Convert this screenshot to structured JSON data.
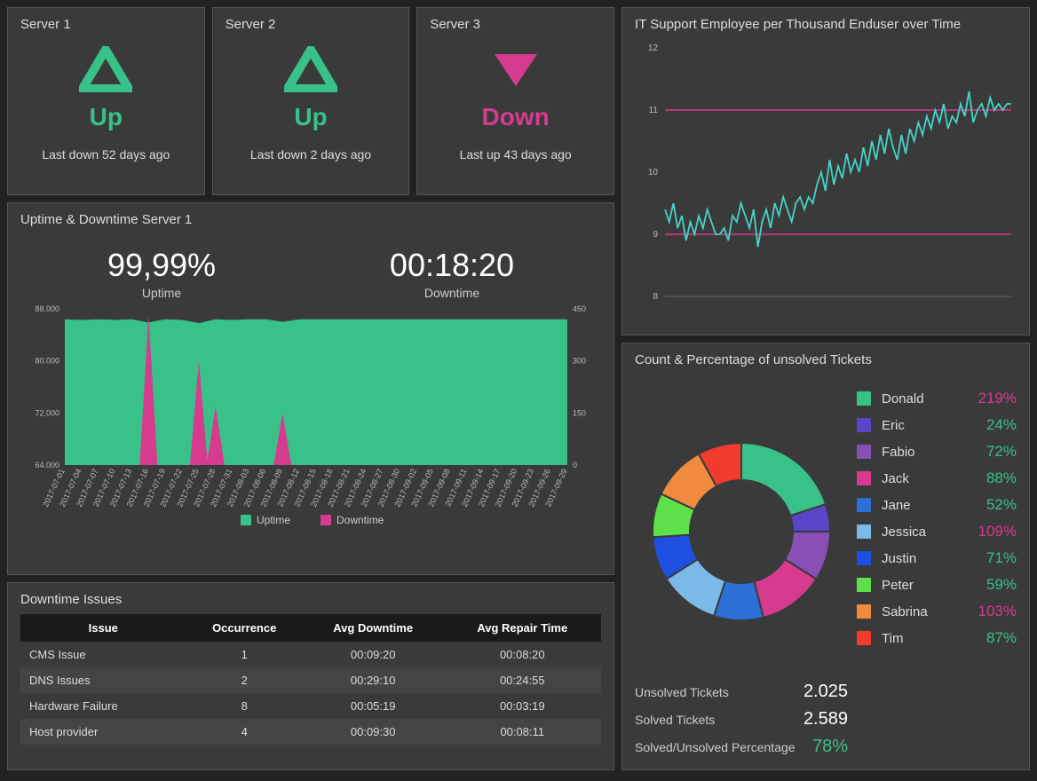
{
  "colors": {
    "bg": "#222222",
    "panel": "#3a3a3a",
    "border": "#555555",
    "green": "#38c28a",
    "magenta": "#d63b8e",
    "teal": "#47d4c6",
    "text": "#dddddd"
  },
  "servers": [
    {
      "name": "Server 1",
      "status": "Up",
      "statusColor": "#38c28a",
      "icon": "triangle-up",
      "meta": "Last down 52 days ago"
    },
    {
      "name": "Server 2",
      "status": "Up",
      "statusColor": "#38c28a",
      "icon": "triangle-up",
      "meta": "Last down 2 days ago"
    },
    {
      "name": "Server 3",
      "status": "Down",
      "statusColor": "#d63b8e",
      "icon": "triangle-down",
      "meta": "Last up 43 days ago"
    }
  ],
  "uptime": {
    "title": "Uptime & Downtime Server 1",
    "uptime_pct": "99,99%",
    "uptime_label": "Uptime",
    "downtime_val": "00:18:20",
    "downtime_label": "Downtime",
    "chart": {
      "type": "area+bar",
      "left_axis_label_vals": [
        "88.000",
        "80.000",
        "72.000",
        "64.000"
      ],
      "left_ylim": [
        64000,
        88000
      ],
      "right_axis_label_vals": [
        "450",
        "300",
        "150",
        "0"
      ],
      "right_ylim": [
        0,
        450
      ],
      "x_labels": [
        "2017-07-01",
        "2017-07-04",
        "2017-07-07",
        "2017-07-10",
        "2017-07-13",
        "2017-07-16",
        "2017-07-19",
        "2017-07-22",
        "2017-07-25",
        "2017-07-28",
        "2017-07-31",
        "2017-08-03",
        "2017-08-06",
        "2017-08-09",
        "2017-08-12",
        "2017-08-15",
        "2017-08-18",
        "2017-08-21",
        "2017-08-24",
        "2017-08-27",
        "2017-08-30",
        "2017-09-02",
        "2017-09-05",
        "2017-09-08",
        "2017-09-11",
        "2017-09-14",
        "2017-09-17",
        "2017-09-20",
        "2017-09-23",
        "2017-09-26",
        "2017-09-29"
      ],
      "uptime_series": [
        86400,
        86300,
        86400,
        86300,
        86400,
        85900,
        86400,
        86300,
        85800,
        86400,
        86300,
        86400,
        86400,
        86000,
        86400,
        86400,
        86400,
        86400,
        86400,
        86400,
        86400,
        86400,
        86400,
        86400,
        86400,
        86400,
        86400,
        86400,
        86400,
        86400,
        86400
      ],
      "uptime_color": "#38c28a",
      "downtime_spikes": [
        {
          "x_index": 5,
          "value": 430
        },
        {
          "x_index": 8,
          "value": 300
        },
        {
          "x_index": 9,
          "value": 170
        },
        {
          "x_index": 13,
          "value": 150
        }
      ],
      "downtime_color": "#d63b8e",
      "legend": [
        {
          "label": "Uptime",
          "color": "#38c28a"
        },
        {
          "label": "Downtime",
          "color": "#d63b8e"
        }
      ],
      "axis_font_size": 9
    }
  },
  "issues": {
    "title": "Downtime Issues",
    "columns": [
      "Issue",
      "Occurrence",
      "Avg Downtime",
      "Avg Repair Time"
    ],
    "rows": [
      [
        "CMS Issue",
        "1",
        "00:09:20",
        "00:08:20"
      ],
      [
        "DNS Issues",
        "2",
        "00:29:10",
        "00:24:55"
      ],
      [
        "Hardware Failure",
        "8",
        "00:05:19",
        "00:03:19"
      ],
      [
        "Host provider",
        "4",
        "00:09:30",
        "00:08:11"
      ]
    ]
  },
  "linechart": {
    "title": "IT Support Employee per Thousand Enduser over Time",
    "type": "line",
    "ylim": [
      8,
      12
    ],
    "ytick_labels": [
      "12",
      "11",
      "10",
      "9",
      "8"
    ],
    "line_color": "#47d4c6",
    "ref_lines": [
      {
        "y": 11,
        "color": "#d63b8e"
      },
      {
        "y": 9,
        "color": "#d63b8e"
      }
    ],
    "series": [
      9.4,
      9.2,
      9.5,
      9.1,
      9.3,
      8.9,
      9.2,
      9.0,
      9.3,
      9.1,
      9.4,
      9.2,
      9.0,
      9.0,
      9.1,
      8.9,
      9.3,
      9.2,
      9.5,
      9.3,
      9.1,
      9.4,
      8.8,
      9.2,
      9.4,
      9.1,
      9.5,
      9.3,
      9.6,
      9.4,
      9.2,
      9.5,
      9.6,
      9.4,
      9.6,
      9.5,
      9.8,
      10.0,
      9.7,
      10.2,
      9.8,
      10.1,
      9.9,
      10.3,
      10.0,
      10.2,
      10.0,
      10.4,
      10.1,
      10.5,
      10.2,
      10.6,
      10.3,
      10.7,
      10.4,
      10.2,
      10.6,
      10.3,
      10.7,
      10.5,
      10.8,
      10.6,
      10.9,
      10.7,
      11.0,
      10.8,
      11.1,
      10.7,
      10.9,
      10.8,
      11.1,
      10.9,
      11.3,
      10.8,
      11.0,
      11.1,
      10.9,
      11.2,
      11.0,
      11.1,
      11.0,
      11.1,
      11.1
    ],
    "axis_font_size": 10
  },
  "tickets": {
    "title": "Count & Percentage of unsolved Tickets",
    "donut": {
      "type": "donut",
      "inner_r": 0.58,
      "segments": [
        {
          "name": "Donald",
          "color": "#38c28a",
          "value": 20
        },
        {
          "name": "Eric",
          "color": "#5a45c9",
          "value": 5
        },
        {
          "name": "Fabio",
          "color": "#8a4fb5",
          "value": 9
        },
        {
          "name": "Jack",
          "color": "#d63b8e",
          "value": 12
        },
        {
          "name": "Jane",
          "color": "#2c6fd6",
          "value": 9
        },
        {
          "name": "Jessica",
          "color": "#7bb9e8",
          "value": 11
        },
        {
          "name": "Justin",
          "color": "#1e4fe0",
          "value": 8
        },
        {
          "name": "Peter",
          "color": "#5ee04a",
          "value": 8
        },
        {
          "name": "Sabrina",
          "color": "#f08a3c",
          "value": 10
        },
        {
          "name": "Tim",
          "color": "#f23b2f",
          "value": 8
        }
      ]
    },
    "legend": [
      {
        "name": "Donald",
        "color": "#38c28a",
        "pct": "219%",
        "pctColor": "#d63b8e"
      },
      {
        "name": "Eric",
        "color": "#5a45c9",
        "pct": "24%",
        "pctColor": "#38c28a"
      },
      {
        "name": "Fabio",
        "color": "#8a4fb5",
        "pct": "72%",
        "pctColor": "#38c28a"
      },
      {
        "name": "Jack",
        "color": "#d63b8e",
        "pct": "88%",
        "pctColor": "#38c28a"
      },
      {
        "name": "Jane",
        "color": "#2c6fd6",
        "pct": "52%",
        "pctColor": "#38c28a"
      },
      {
        "name": "Jessica",
        "color": "#7bb9e8",
        "pct": "109%",
        "pctColor": "#d63b8e"
      },
      {
        "name": "Justin",
        "color": "#1e4fe0",
        "pct": "71%",
        "pctColor": "#38c28a"
      },
      {
        "name": "Peter",
        "color": "#5ee04a",
        "pct": "59%",
        "pctColor": "#38c28a"
      },
      {
        "name": "Sabrina",
        "color": "#f08a3c",
        "pct": "103%",
        "pctColor": "#d63b8e"
      },
      {
        "name": "Tim",
        "color": "#f23b2f",
        "pct": "87%",
        "pctColor": "#38c28a"
      }
    ],
    "stats": {
      "unsolved_label": "Unsolved Tickets",
      "unsolved_val": "2.025",
      "solved_label": "Solved Tickets",
      "solved_val": "2.589",
      "ratio_label": "Solved/Unsolved Percentage",
      "ratio_val": "78%",
      "ratio_color": "#38c28a"
    }
  }
}
